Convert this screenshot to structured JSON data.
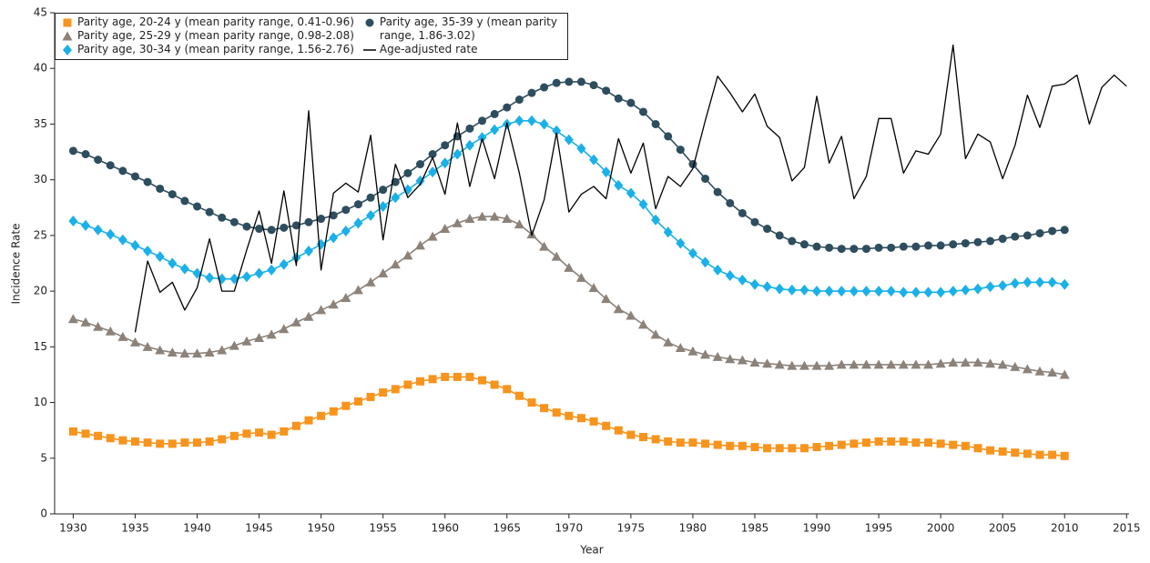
{
  "chart_data": {
    "type": "line",
    "x_label": "Year",
    "y_label": "Incidence Rate",
    "xlim": [
      1928.5,
      2015.2
    ],
    "ylim": [
      0,
      45
    ],
    "xticks": [
      1930,
      1935,
      1940,
      1945,
      1950,
      1955,
      1960,
      1965,
      1970,
      1975,
      1980,
      1985,
      1990,
      1995,
      2000,
      2005,
      2010,
      2015
    ],
    "yticks": [
      0,
      5,
      10,
      15,
      20,
      25,
      30,
      35,
      40,
      45
    ],
    "grid": false,
    "legend": "upper left",
    "series": [
      {
        "name": "Parity age, 20-24 y (mean parity range, 0.41-0.96)",
        "color": "#f7941d",
        "marker": "square",
        "x": [
          1930,
          1931,
          1932,
          1933,
          1934,
          1935,
          1936,
          1937,
          1938,
          1939,
          1940,
          1941,
          1942,
          1943,
          1944,
          1945,
          1946,
          1947,
          1948,
          1949,
          1950,
          1951,
          1952,
          1953,
          1954,
          1955,
          1956,
          1957,
          1958,
          1959,
          1960,
          1961,
          1962,
          1963,
          1964,
          1965,
          1966,
          1967,
          1968,
          1969,
          1970,
          1971,
          1972,
          1973,
          1974,
          1975,
          1976,
          1977,
          1978,
          1979,
          1980,
          1981,
          1982,
          1983,
          1984,
          1985,
          1986,
          1987,
          1988,
          1989,
          1990,
          1991,
          1992,
          1993,
          1994,
          1995,
          1996,
          1997,
          1998,
          1999,
          2000,
          2001,
          2002,
          2003,
          2004,
          2005,
          2006,
          2007,
          2008,
          2009,
          2010
        ],
        "values": [
          7.4,
          7.2,
          7.0,
          6.8,
          6.6,
          6.5,
          6.4,
          6.3,
          6.3,
          6.4,
          6.4,
          6.5,
          6.7,
          7.0,
          7.2,
          7.3,
          7.1,
          7.4,
          7.9,
          8.4,
          8.8,
          9.2,
          9.7,
          10.1,
          10.5,
          10.9,
          11.2,
          11.6,
          11.9,
          12.1,
          12.3,
          12.3,
          12.3,
          12.0,
          11.6,
          11.2,
          10.6,
          10.0,
          9.5,
          9.1,
          8.8,
          8.6,
          8.3,
          7.9,
          7.5,
          7.1,
          6.9,
          6.7,
          6.5,
          6.4,
          6.4,
          6.3,
          6.2,
          6.1,
          6.1,
          6.0,
          5.9,
          5.9,
          5.9,
          5.9,
          6.0,
          6.1,
          6.2,
          6.3,
          6.4,
          6.5,
          6.5,
          6.5,
          6.4,
          6.4,
          6.3,
          6.2,
          6.1,
          5.9,
          5.7,
          5.6,
          5.5,
          5.4,
          5.3,
          5.3,
          5.2
        ]
      },
      {
        "name": "Parity age, 25-29 y (mean parity range, 0.98-2.08)",
        "color": "#8c8279",
        "marker": "triangle",
        "x": [
          1930,
          1931,
          1932,
          1933,
          1934,
          1935,
          1936,
          1937,
          1938,
          1939,
          1940,
          1941,
          1942,
          1943,
          1944,
          1945,
          1946,
          1947,
          1948,
          1949,
          1950,
          1951,
          1952,
          1953,
          1954,
          1955,
          1956,
          1957,
          1958,
          1959,
          1960,
          1961,
          1962,
          1963,
          1964,
          1965,
          1966,
          1967,
          1968,
          1969,
          1970,
          1971,
          1972,
          1973,
          1974,
          1975,
          1976,
          1977,
          1978,
          1979,
          1980,
          1981,
          1982,
          1983,
          1984,
          1985,
          1986,
          1987,
          1988,
          1989,
          1990,
          1991,
          1992,
          1993,
          1994,
          1995,
          1996,
          1997,
          1998,
          1999,
          2000,
          2001,
          2002,
          2003,
          2004,
          2005,
          2006,
          2007,
          2008,
          2009,
          2010
        ],
        "values": [
          17.5,
          17.2,
          16.8,
          16.4,
          15.9,
          15.4,
          15.0,
          14.7,
          14.5,
          14.4,
          14.4,
          14.5,
          14.7,
          15.1,
          15.5,
          15.8,
          16.1,
          16.6,
          17.2,
          17.7,
          18.3,
          18.8,
          19.4,
          20.1,
          20.8,
          21.6,
          22.4,
          23.2,
          24.1,
          24.9,
          25.6,
          26.1,
          26.5,
          26.7,
          26.7,
          26.5,
          26.0,
          25.1,
          24.0,
          23.1,
          22.1,
          21.2,
          20.3,
          19.3,
          18.4,
          17.8,
          17.0,
          16.1,
          15.4,
          14.9,
          14.6,
          14.3,
          14.1,
          13.9,
          13.8,
          13.6,
          13.5,
          13.4,
          13.3,
          13.3,
          13.3,
          13.3,
          13.4,
          13.4,
          13.4,
          13.4,
          13.4,
          13.4,
          13.4,
          13.4,
          13.5,
          13.6,
          13.6,
          13.6,
          13.5,
          13.4,
          13.2,
          13.0,
          12.8,
          12.7,
          12.5
        ]
      },
      {
        "name": "Parity age, 30-34 y (mean parity range, 1.56-2.76)",
        "color": "#1ab0e8",
        "marker": "diamond",
        "x": [
          1930,
          1931,
          1932,
          1933,
          1934,
          1935,
          1936,
          1937,
          1938,
          1939,
          1940,
          1941,
          1942,
          1943,
          1944,
          1945,
          1946,
          1947,
          1948,
          1949,
          1950,
          1951,
          1952,
          1953,
          1954,
          1955,
          1956,
          1957,
          1958,
          1959,
          1960,
          1961,
          1962,
          1963,
          1964,
          1965,
          1966,
          1967,
          1968,
          1969,
          1970,
          1971,
          1972,
          1973,
          1974,
          1975,
          1976,
          1977,
          1978,
          1979,
          1980,
          1981,
          1982,
          1983,
          1984,
          1985,
          1986,
          1987,
          1988,
          1989,
          1990,
          1991,
          1992,
          1993,
          1994,
          1995,
          1996,
          1997,
          1998,
          1999,
          2000,
          2001,
          2002,
          2003,
          2004,
          2005,
          2006,
          2007,
          2008,
          2009,
          2010
        ],
        "values": [
          26.3,
          25.9,
          25.5,
          25.1,
          24.6,
          24.1,
          23.6,
          23.1,
          22.5,
          22.0,
          21.6,
          21.2,
          21.1,
          21.1,
          21.3,
          21.6,
          21.9,
          22.4,
          23.0,
          23.6,
          24.2,
          24.8,
          25.4,
          26.1,
          26.8,
          27.6,
          28.4,
          29.1,
          29.9,
          30.7,
          31.5,
          32.3,
          33.1,
          33.8,
          34.5,
          35.0,
          35.3,
          35.3,
          35.0,
          34.4,
          33.6,
          32.8,
          31.8,
          30.7,
          29.5,
          28.8,
          27.8,
          26.4,
          25.3,
          24.3,
          23.4,
          22.6,
          21.9,
          21.4,
          21.0,
          20.6,
          20.4,
          20.2,
          20.1,
          20.1,
          20.0,
          20.0,
          20.0,
          20.0,
          20.0,
          20.0,
          20.0,
          19.9,
          19.9,
          19.9,
          19.9,
          20.0,
          20.1,
          20.2,
          20.4,
          20.5,
          20.7,
          20.8,
          20.8,
          20.8,
          20.6
        ]
      },
      {
        "name": "Parity age, 35-39 y (mean parity range, 1.86-3.02)",
        "color": "#2e4d5e",
        "marker": "circle",
        "x": [
          1930,
          1931,
          1932,
          1933,
          1934,
          1935,
          1936,
          1937,
          1938,
          1939,
          1940,
          1941,
          1942,
          1943,
          1944,
          1945,
          1946,
          1947,
          1948,
          1949,
          1950,
          1951,
          1952,
          1953,
          1954,
          1955,
          1956,
          1957,
          1958,
          1959,
          1960,
          1961,
          1962,
          1963,
          1964,
          1965,
          1966,
          1967,
          1968,
          1969,
          1970,
          1971,
          1972,
          1973,
          1974,
          1975,
          1976,
          1977,
          1978,
          1979,
          1980,
          1981,
          1982,
          1983,
          1984,
          1985,
          1986,
          1987,
          1988,
          1989,
          1990,
          1991,
          1992,
          1993,
          1994,
          1995,
          1996,
          1997,
          1998,
          1999,
          2000,
          2001,
          2002,
          2003,
          2004,
          2005,
          2006,
          2007,
          2008,
          2009,
          2010
        ],
        "values": [
          32.6,
          32.3,
          31.8,
          31.3,
          30.8,
          30.3,
          29.8,
          29.2,
          28.7,
          28.1,
          27.6,
          27.1,
          26.6,
          26.2,
          25.8,
          25.6,
          25.5,
          25.7,
          25.9,
          26.2,
          26.5,
          26.8,
          27.3,
          27.8,
          28.4,
          29.1,
          29.8,
          30.6,
          31.4,
          32.3,
          33.1,
          33.9,
          34.6,
          35.3,
          35.9,
          36.5,
          37.2,
          37.8,
          38.3,
          38.7,
          38.8,
          38.8,
          38.5,
          38.0,
          37.3,
          36.9,
          36.1,
          35.0,
          33.9,
          32.7,
          31.4,
          30.1,
          28.9,
          27.9,
          27.0,
          26.2,
          25.6,
          25.0,
          24.5,
          24.2,
          24.0,
          23.9,
          23.8,
          23.8,
          23.8,
          23.9,
          23.9,
          24.0,
          24.0,
          24.1,
          24.1,
          24.2,
          24.3,
          24.4,
          24.5,
          24.7,
          24.9,
          25.0,
          25.2,
          25.4,
          25.5
        ]
      },
      {
        "name": "Age-adjusted rate",
        "color": "#000000",
        "marker": "none",
        "x": [
          1935,
          1936,
          1937,
          1938,
          1939,
          1940,
          1941,
          1942,
          1943,
          1944,
          1945,
          1946,
          1947,
          1948,
          1949,
          1950,
          1951,
          1952,
          1953,
          1954,
          1955,
          1956,
          1957,
          1958,
          1959,
          1960,
          1961,
          1962,
          1963,
          1964,
          1965,
          1966,
          1967,
          1968,
          1969,
          1970,
          1971,
          1972,
          1973,
          1974,
          1975,
          1976,
          1977,
          1978,
          1979,
          1980,
          1981,
          1982,
          1983,
          1984,
          1985,
          1986,
          1987,
          1988,
          1989,
          1990,
          1991,
          1992,
          1993,
          1994,
          1995,
          1996,
          1997,
          1998,
          1999,
          2000,
          2001,
          2002,
          2003,
          2004,
          2005,
          2006,
          2007,
          2008,
          2009,
          2010,
          2011,
          2012,
          2013,
          2014,
          2015
        ],
        "values": [
          16.3,
          22.7,
          19.9,
          20.8,
          18.3,
          20.3,
          24.7,
          20.0,
          20.0,
          23.7,
          27.2,
          22.5,
          29.0,
          22.3,
          36.2,
          21.9,
          28.8,
          29.7,
          28.9,
          34.0,
          24.6,
          31.4,
          28.4,
          29.6,
          32.0,
          28.7,
          35.1,
          29.4,
          33.7,
          30.1,
          35.1,
          30.6,
          25.0,
          28.2,
          34.2,
          27.1,
          28.7,
          29.4,
          28.3,
          33.7,
          30.6,
          33.3,
          27.4,
          30.3,
          29.4,
          31.0,
          35.3,
          39.3,
          37.8,
          36.1,
          37.7,
          34.8,
          33.8,
          29.9,
          31.1,
          37.5,
          31.5,
          33.9,
          28.3,
          30.3,
          35.5,
          35.5,
          30.6,
          32.6,
          32.3,
          34.1,
          42.1,
          31.9,
          34.1,
          33.4,
          30.1,
          33.1,
          37.6,
          34.7,
          38.4,
          38.6,
          39.4,
          35.0,
          38.3,
          39.4,
          38.4
        ]
      }
    ]
  }
}
